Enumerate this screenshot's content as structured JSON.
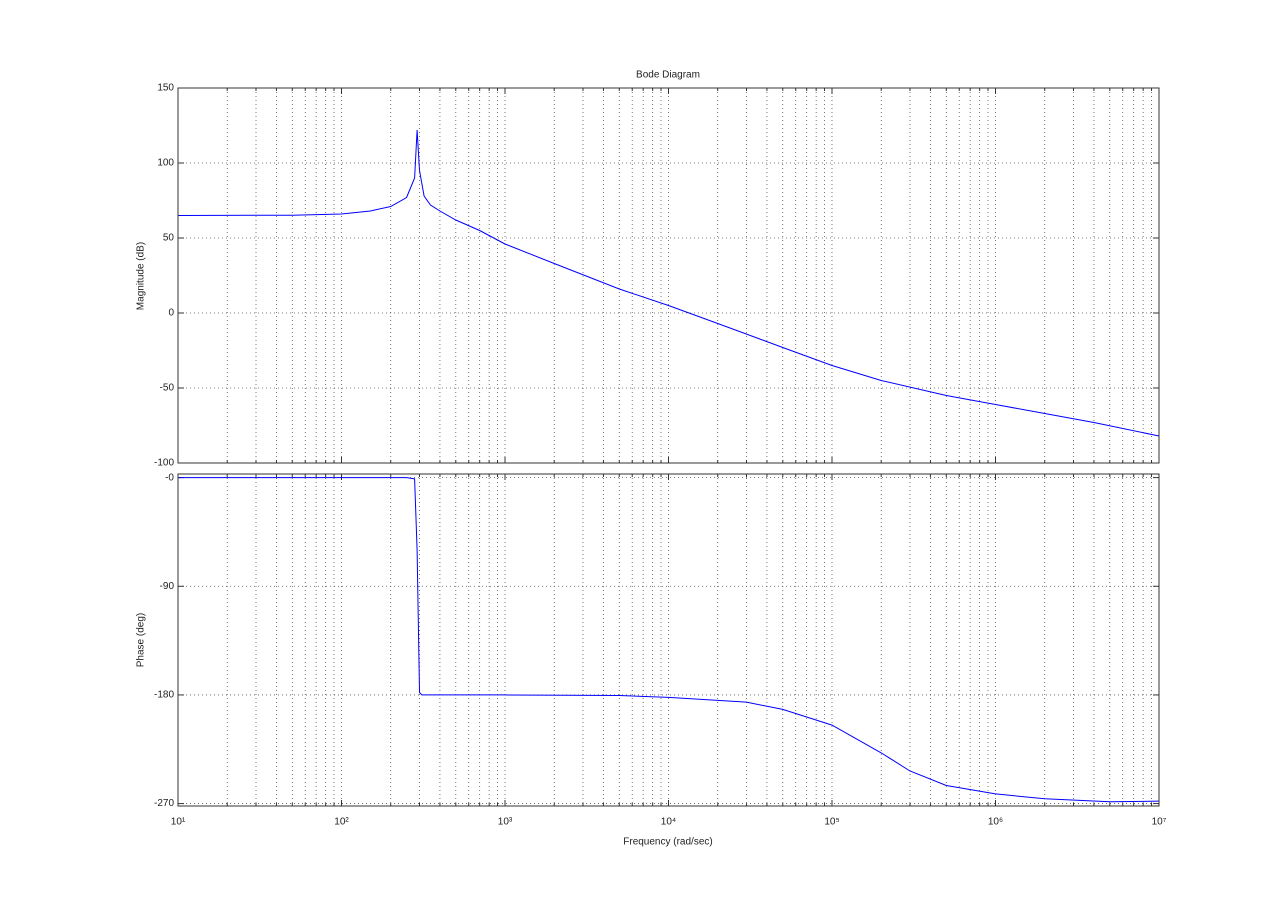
{
  "chart_data": [
    {
      "type": "line",
      "title": "Bode Diagram",
      "ylabel": "Magnitude (dB)",
      "x": [
        10,
        50,
        100,
        150,
        200,
        250,
        280,
        290,
        300,
        320,
        350,
        400,
        500,
        700,
        1000,
        2000,
        5000,
        10000,
        20000,
        50000,
        100000,
        200000,
        500000,
        1000000,
        2000000,
        4000000,
        10000000
      ],
      "series": [
        {
          "color": "#0000ff",
          "values": [
            65,
            65.2,
            66,
            68,
            71,
            77,
            90,
            122,
            95,
            78,
            72,
            68,
            62,
            55,
            46,
            33,
            16,
            5,
            -7,
            -23,
            -35,
            -45,
            -55,
            -61,
            -67,
            -73,
            -82
          ]
        }
      ],
      "ylim": [
        -100,
        150
      ],
      "yticks": [
        -100,
        -50,
        0,
        50,
        100,
        150
      ],
      "xscale": "log",
      "grid": true
    },
    {
      "type": "line",
      "ylabel": "Phase (deg)",
      "xlabel": "Frequency  (rad/sec)",
      "x": [
        10,
        250,
        280,
        290,
        300,
        310,
        1000,
        5000,
        10000,
        30000,
        50000,
        100000,
        200000,
        300000,
        500000,
        1000000,
        2000000,
        5000000,
        10000000
      ],
      "series": [
        {
          "color": "#0000ff",
          "values": [
            0,
            0,
            -1,
            -60,
            -178,
            -180,
            -180,
            -180.5,
            -182,
            -186,
            -192,
            -205,
            -228,
            -243,
            -255,
            -262,
            -266,
            -268.5,
            -268
          ]
        }
      ],
      "ylim": [
        -272,
        3
      ],
      "yticks": [
        {
          "value": 0,
          "label": "-0"
        },
        -90,
        -180,
        -270
      ],
      "xlim": [
        10,
        10000000
      ],
      "xscale": "log",
      "grid": true,
      "xticks": [
        {
          "value": 10,
          "label": "10¹"
        },
        {
          "value": 100,
          "label": "10²"
        },
        {
          "value": 1000,
          "label": "10³"
        },
        {
          "value": 10000,
          "label": "10⁴"
        },
        {
          "value": 100000,
          "label": "10⁵"
        },
        {
          "value": 1000000,
          "label": "10⁶"
        },
        {
          "value": 10000000,
          "label": "10⁷"
        }
      ]
    }
  ]
}
